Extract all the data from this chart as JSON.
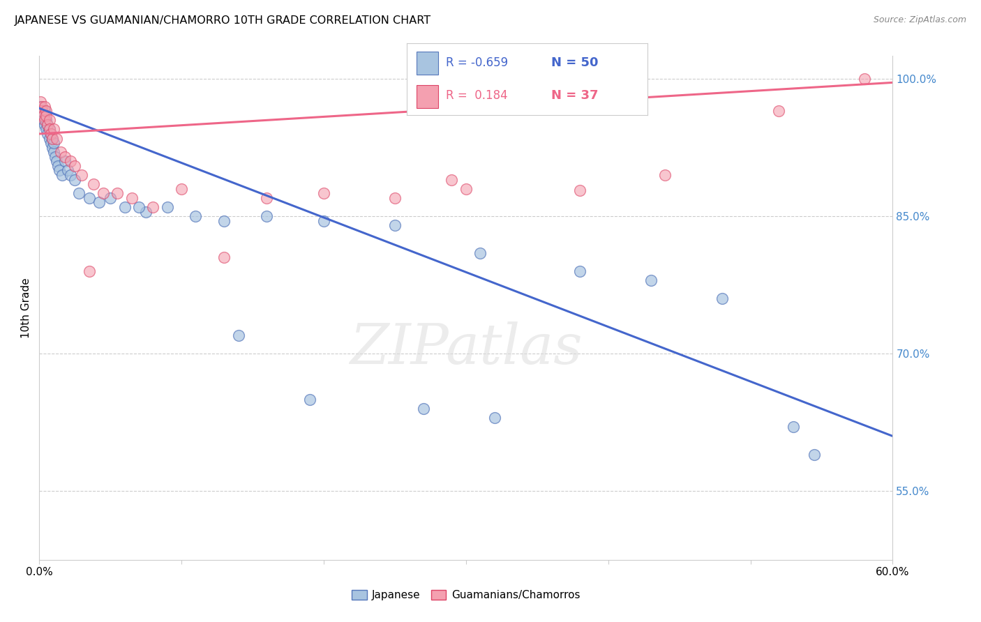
{
  "title": "JAPANESE VS GUAMANIAN/CHAMORRO 10TH GRADE CORRELATION CHART",
  "source": "Source: ZipAtlas.com",
  "ylabel": "10th Grade",
  "yaxis_ticks": [
    55.0,
    70.0,
    85.0,
    100.0
  ],
  "xmin": 0.0,
  "xmax": 0.6,
  "ymin": 0.475,
  "ymax": 1.025,
  "watermark": "ZIPatlas",
  "legend_blue_r": "-0.659",
  "legend_blue_n": "50",
  "legend_pink_r": "0.184",
  "legend_pink_n": "37",
  "blue_color": "#A8C4E0",
  "pink_color": "#F4A0B0",
  "blue_edge_color": "#5577BB",
  "pink_edge_color": "#DD4466",
  "blue_line_color": "#4466CC",
  "pink_line_color": "#EE6688",
  "japanese_x": [
    0.001,
    0.002,
    0.003,
    0.003,
    0.004,
    0.004,
    0.005,
    0.005,
    0.006,
    0.006,
    0.007,
    0.007,
    0.008,
    0.008,
    0.009,
    0.009,
    0.01,
    0.01,
    0.011,
    0.012,
    0.013,
    0.014,
    0.016,
    0.018,
    0.02,
    0.022,
    0.025,
    0.028,
    0.035,
    0.042,
    0.05,
    0.06,
    0.075,
    0.09,
    0.11,
    0.13,
    0.16,
    0.2,
    0.25,
    0.31,
    0.38,
    0.43,
    0.48,
    0.53,
    0.545,
    0.32,
    0.27,
    0.19,
    0.14,
    0.07
  ],
  "japanese_y": [
    0.97,
    0.965,
    0.96,
    0.955,
    0.95,
    0.965,
    0.945,
    0.955,
    0.94,
    0.95,
    0.935,
    0.945,
    0.93,
    0.94,
    0.935,
    0.925,
    0.92,
    0.93,
    0.915,
    0.91,
    0.905,
    0.9,
    0.895,
    0.91,
    0.9,
    0.895,
    0.89,
    0.875,
    0.87,
    0.865,
    0.87,
    0.86,
    0.855,
    0.86,
    0.85,
    0.845,
    0.85,
    0.845,
    0.84,
    0.81,
    0.79,
    0.78,
    0.76,
    0.62,
    0.59,
    0.63,
    0.64,
    0.65,
    0.72,
    0.86
  ],
  "chamorro_x": [
    0.001,
    0.002,
    0.002,
    0.003,
    0.004,
    0.004,
    0.005,
    0.005,
    0.006,
    0.007,
    0.007,
    0.008,
    0.009,
    0.01,
    0.012,
    0.015,
    0.018,
    0.022,
    0.025,
    0.03,
    0.038,
    0.045,
    0.055,
    0.065,
    0.08,
    0.1,
    0.13,
    0.16,
    0.2,
    0.25,
    0.3,
    0.38,
    0.44,
    0.52,
    0.58,
    0.29,
    0.035
  ],
  "chamorro_y": [
    0.975,
    0.97,
    0.965,
    0.96,
    0.97,
    0.955,
    0.965,
    0.96,
    0.95,
    0.955,
    0.945,
    0.94,
    0.935,
    0.945,
    0.935,
    0.92,
    0.915,
    0.91,
    0.905,
    0.895,
    0.885,
    0.875,
    0.875,
    0.87,
    0.86,
    0.88,
    0.805,
    0.87,
    0.875,
    0.87,
    0.88,
    0.878,
    0.895,
    0.965,
    1.0,
    0.89,
    0.79
  ],
  "blue_trendline_x": [
    0.0,
    0.6
  ],
  "blue_trendline_y": [
    0.968,
    0.61
  ],
  "pink_trendline_x": [
    0.0,
    0.6
  ],
  "pink_trendline_y": [
    0.94,
    0.996
  ]
}
